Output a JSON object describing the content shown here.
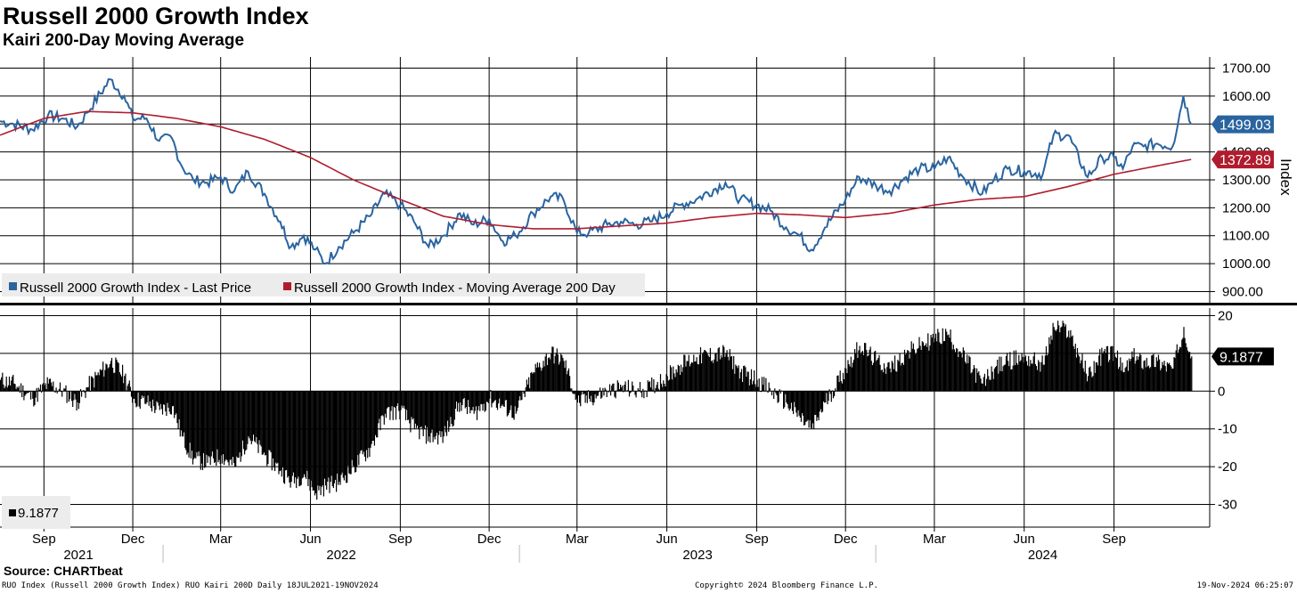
{
  "title": "Russell 2000 Growth Index",
  "subtitle": "Kairi 200-Day Moving Average",
  "source": "Source: CHARTbeat",
  "footer": {
    "left": "RUO Index (Russell 2000 Growth Index) RUO Kairi 200D  Daily 18JUL2021-19NOV2024",
    "center": "Copyright© 2024 Bloomberg Finance L.P.",
    "right": "19-Nov-2024 06:25:07"
  },
  "colors": {
    "price": "#2a64a0",
    "ma": "#b01c2e",
    "kairi": "#000000",
    "grid": "#000000"
  },
  "chart_data": [
    {
      "type": "line",
      "ylabel": "Index",
      "ylim": [
        860,
        1740
      ],
      "yticks": [
        "1700.00",
        "1600.00",
        "1500.00",
        "1400.00",
        "1300.00",
        "1200.00",
        "1100.00",
        "1000.00",
        "900.00"
      ],
      "yticks_values": [
        1700,
        1600,
        1500,
        1400,
        1300,
        1200,
        1100,
        1000,
        900
      ],
      "legend_position": "bottom-left",
      "last_labels": {
        "price": "1499.03",
        "ma": "1372.89"
      },
      "series": [
        {
          "name": "Russell 2000 Growth Index - Last Price",
          "x": [
            "2021-07-18",
            "2021-08-01",
            "2021-08-20",
            "2021-09-05",
            "2021-09-20",
            "2021-10-05",
            "2021-10-15",
            "2021-11-08",
            "2021-11-22",
            "2021-12-01",
            "2021-12-15",
            "2021-12-28",
            "2022-01-10",
            "2022-01-20",
            "2022-02-01",
            "2022-02-15",
            "2022-03-01",
            "2022-03-15",
            "2022-03-29",
            "2022-04-15",
            "2022-05-01",
            "2022-05-12",
            "2022-05-25",
            "2022-06-06",
            "2022-06-16",
            "2022-06-30",
            "2022-07-15",
            "2022-08-01",
            "2022-08-16",
            "2022-09-01",
            "2022-09-15",
            "2022-09-30",
            "2022-10-15",
            "2022-11-01",
            "2022-11-15",
            "2022-12-01",
            "2022-12-15",
            "2022-12-28",
            "2023-01-15",
            "2023-02-02",
            "2023-02-15",
            "2023-03-01",
            "2023-03-13",
            "2023-04-01",
            "2023-04-15",
            "2023-05-01",
            "2023-05-15",
            "2023-06-01",
            "2023-06-15",
            "2023-07-01",
            "2023-07-31",
            "2023-08-15",
            "2023-09-01",
            "2023-09-15",
            "2023-10-01",
            "2023-10-15",
            "2023-10-27",
            "2023-11-10",
            "2023-12-01",
            "2023-12-15",
            "2024-01-01",
            "2024-01-15",
            "2024-02-01",
            "2024-02-15",
            "2024-03-01",
            "2024-03-15",
            "2024-03-28",
            "2024-04-19",
            "2024-05-01",
            "2024-05-15",
            "2024-06-01",
            "2024-06-20",
            "2024-07-01",
            "2024-07-16",
            "2024-08-05",
            "2024-08-20",
            "2024-09-01",
            "2024-09-10",
            "2024-09-20",
            "2024-10-01",
            "2024-10-15",
            "2024-10-31",
            "2024-11-11",
            "2024-11-19"
          ],
          "values": [
            1510,
            1500,
            1480,
            1530,
            1520,
            1490,
            1540,
            1660,
            1600,
            1520,
            1520,
            1440,
            1450,
            1350,
            1300,
            1290,
            1310,
            1260,
            1330,
            1250,
            1150,
            1060,
            1100,
            1050,
            1000,
            1060,
            1110,
            1170,
            1250,
            1210,
            1150,
            1060,
            1100,
            1180,
            1140,
            1160,
            1080,
            1100,
            1180,
            1240,
            1230,
            1110,
            1110,
            1140,
            1150,
            1140,
            1150,
            1180,
            1210,
            1230,
            1290,
            1230,
            1210,
            1190,
            1130,
            1100,
            1050,
            1130,
            1230,
            1310,
            1280,
            1260,
            1310,
            1340,
            1340,
            1380,
            1320,
            1250,
            1300,
            1340,
            1330,
            1320,
            1460,
            1460,
            1310,
            1380,
            1380,
            1340,
            1420,
            1420,
            1430,
            1420,
            1600,
            1499.03
          ]
        },
        {
          "name": "Russell 2000 Growth Index - Moving Average 200 Day",
          "x": [
            "2021-07-18",
            "2021-09-01",
            "2021-10-15",
            "2021-12-01",
            "2022-01-15",
            "2022-03-01",
            "2022-04-15",
            "2022-06-01",
            "2022-07-15",
            "2022-09-01",
            "2022-10-15",
            "2022-12-01",
            "2023-01-15",
            "2023-03-01",
            "2023-04-15",
            "2023-06-01",
            "2023-07-15",
            "2023-09-01",
            "2023-10-15",
            "2023-12-01",
            "2024-01-15",
            "2024-03-01",
            "2024-04-15",
            "2024-06-01",
            "2024-07-15",
            "2024-09-01",
            "2024-10-15",
            "2024-11-19"
          ],
          "values": [
            1460,
            1520,
            1545,
            1540,
            1520,
            1490,
            1445,
            1380,
            1300,
            1230,
            1170,
            1140,
            1125,
            1125,
            1135,
            1145,
            1165,
            1180,
            1175,
            1165,
            1180,
            1210,
            1230,
            1240,
            1275,
            1320,
            1350,
            1372.89
          ]
        }
      ]
    },
    {
      "type": "bar",
      "ylim": [
        -36,
        22
      ],
      "yticks": [
        "20",
        "10",
        "0",
        "-10",
        "-20",
        "-30"
      ],
      "yticks_values": [
        20,
        10,
        0,
        -10,
        -20,
        -30
      ],
      "last_label": "9.1877",
      "series": [
        {
          "name": "9.1877",
          "x": [
            "2021-07-18",
            "2021-08-01",
            "2021-08-20",
            "2021-09-05",
            "2021-09-20",
            "2021-10-05",
            "2021-10-15",
            "2021-11-08",
            "2021-11-22",
            "2021-12-01",
            "2021-12-15",
            "2021-12-28",
            "2022-01-10",
            "2022-01-20",
            "2022-02-01",
            "2022-02-15",
            "2022-03-01",
            "2022-03-15",
            "2022-03-29",
            "2022-04-15",
            "2022-05-01",
            "2022-05-12",
            "2022-05-25",
            "2022-06-06",
            "2022-06-16",
            "2022-06-30",
            "2022-07-15",
            "2022-08-01",
            "2022-08-16",
            "2022-09-01",
            "2022-09-15",
            "2022-09-30",
            "2022-10-15",
            "2022-11-01",
            "2022-11-15",
            "2022-12-01",
            "2022-12-15",
            "2022-12-28",
            "2023-01-15",
            "2023-02-02",
            "2023-02-15",
            "2023-03-01",
            "2023-03-13",
            "2023-04-01",
            "2023-04-15",
            "2023-05-01",
            "2023-05-15",
            "2023-06-01",
            "2023-06-15",
            "2023-07-01",
            "2023-07-31",
            "2023-08-15",
            "2023-09-01",
            "2023-09-15",
            "2023-10-01",
            "2023-10-15",
            "2023-10-27",
            "2023-11-10",
            "2023-12-01",
            "2023-12-15",
            "2024-01-01",
            "2024-01-15",
            "2024-02-01",
            "2024-02-15",
            "2024-03-01",
            "2024-03-15",
            "2024-03-28",
            "2024-04-19",
            "2024-05-01",
            "2024-05-15",
            "2024-06-01",
            "2024-06-20",
            "2024-07-01",
            "2024-07-16",
            "2024-08-05",
            "2024-08-20",
            "2024-09-01",
            "2024-09-10",
            "2024-09-20",
            "2024-10-01",
            "2024-10-15",
            "2024-10-31",
            "2024-11-11",
            "2024-11-19"
          ],
          "values": [
            3,
            2,
            -2,
            2,
            0,
            -3,
            1,
            8,
            4,
            -2,
            -3,
            -5,
            -4,
            -12,
            -18,
            -19,
            -17,
            -20,
            -12,
            -17,
            -21,
            -24,
            -22,
            -27,
            -25,
            -24,
            -20,
            -15,
            -6,
            -5,
            -10,
            -12,
            -12,
            -3,
            -6,
            -2,
            -4,
            -6,
            5,
            10,
            8,
            -3,
            -2,
            0,
            1,
            0,
            1,
            4,
            7,
            9,
            10,
            5,
            3,
            0,
            -3,
            -7,
            -10,
            -3,
            6,
            12,
            8,
            6,
            10,
            12,
            14,
            15,
            10,
            2,
            6,
            8,
            9,
            7,
            17,
            16,
            4,
            10,
            10,
            5,
            9,
            8,
            8,
            6,
            17,
            9.1877
          ]
        }
      ]
    }
  ],
  "x_axis": {
    "months": [
      "Sep",
      "Dec",
      "Mar",
      "Jun",
      "Sep",
      "Dec",
      "Mar",
      "Jun",
      "Sep",
      "Dec",
      "Mar",
      "Jun",
      "Sep"
    ],
    "month_dates": [
      "2021-09-01",
      "2021-12-01",
      "2022-03-01",
      "2022-06-01",
      "2022-09-01",
      "2022-12-01",
      "2023-03-01",
      "2023-06-01",
      "2023-09-01",
      "2023-12-01",
      "2024-03-01",
      "2024-06-01",
      "2024-09-01"
    ],
    "years": [
      "2021",
      "2022",
      "2023",
      "2024"
    ]
  }
}
